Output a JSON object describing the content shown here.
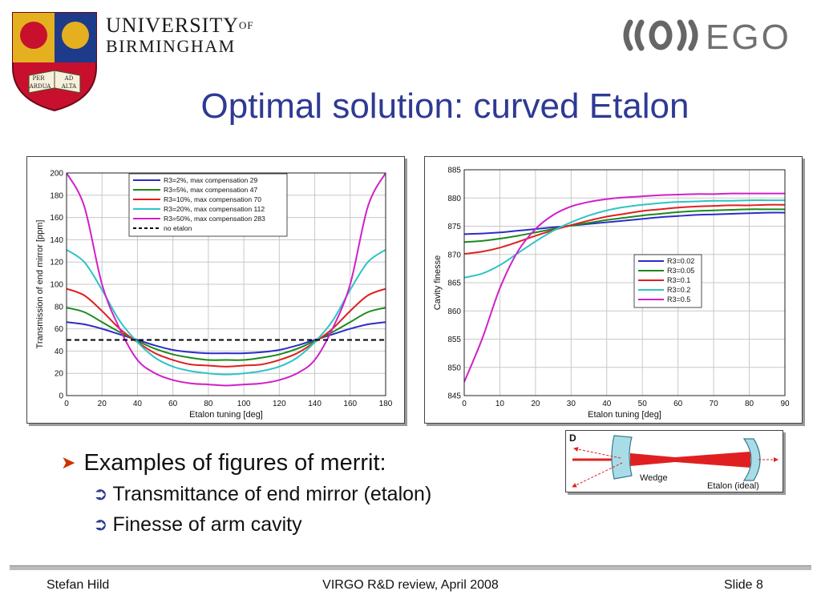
{
  "header": {
    "university_line1": "UNIVERSITY",
    "university_of": "OF",
    "university_line2": "BIRMINGHAM",
    "crest_motto_1": "PER",
    "crest_motto_2": "AD",
    "crest_motto_3": "ARDUA",
    "crest_motto_4": "ALTA",
    "ego_logo": "EGO"
  },
  "title": "Optimal solution: curved Etalon",
  "bullets": {
    "main": "Examples of figures of merrit:",
    "sub": [
      "Transmittance of end mirror (etalon)",
      "Finesse of arm cavity"
    ]
  },
  "diagram": {
    "corner_label": "D",
    "wedge_label": "Wedge",
    "etalon_label": "Etalon (ideal)"
  },
  "footer": {
    "author": "Stefan Hild",
    "event": "VIRGO R&D review, April 2008",
    "slide": "Slide 8"
  },
  "colors": {
    "title": "#2e3a93",
    "s1": "#2c2cc8",
    "s2": "#1a8a1a",
    "s3": "#e02020",
    "s4": "#2ec4c4",
    "s5": "#d020c8",
    "ref": "#000000"
  },
  "chart_data": [
    {
      "type": "line",
      "title": "",
      "xlabel": "Etalon tuning [deg]",
      "ylabel": "Transmission of end mirror [ppm]",
      "xlim": [
        0,
        180
      ],
      "ylim": [
        0,
        200
      ],
      "xticks": [
        0,
        20,
        40,
        60,
        80,
        100,
        120,
        140,
        160,
        180
      ],
      "yticks": [
        0,
        20,
        40,
        60,
        80,
        100,
        120,
        140,
        160,
        180,
        200
      ],
      "grid": true,
      "legend_position": "top-center",
      "x": [
        0,
        10,
        20,
        30,
        40,
        50,
        60,
        70,
        80,
        90,
        100,
        110,
        120,
        130,
        140,
        150,
        160,
        170,
        180
      ],
      "series": [
        {
          "name": "R3=2%, max compensation 29",
          "color": "#2c2cc8",
          "values": [
            66,
            64,
            60,
            55,
            50,
            45,
            41,
            39,
            38,
            38,
            38,
            39,
            41,
            45,
            50,
            55,
            60,
            64,
            66
          ]
        },
        {
          "name": "R3=5%, max compensation 47",
          "color": "#1a8a1a",
          "values": [
            79,
            75,
            66,
            57,
            49,
            42,
            37,
            34,
            32,
            32,
            32,
            34,
            37,
            42,
            49,
            57,
            66,
            75,
            79
          ]
        },
        {
          "name": "R3=10%, max compensation 70",
          "color": "#e02020",
          "values": [
            96,
            90,
            76,
            60,
            48,
            38,
            32,
            28,
            27,
            26,
            27,
            28,
            32,
            38,
            48,
            60,
            76,
            90,
            96
          ]
        },
        {
          "name": "R3=20%, max compensation 112",
          "color": "#2ec4c4",
          "values": [
            131,
            120,
            95,
            67,
            48,
            34,
            26,
            22,
            20,
            19,
            20,
            22,
            26,
            34,
            48,
            67,
            95,
            120,
            131
          ]
        },
        {
          "name": "R3=50%, max compensation 283",
          "color": "#d020c8",
          "values": [
            200,
            170,
            100,
            60,
            32,
            20,
            14,
            11,
            10,
            9,
            10,
            11,
            14,
            20,
            32,
            60,
            100,
            170,
            200
          ]
        },
        {
          "name": "no etalon",
          "color": "#000000",
          "dashed": true,
          "values": [
            50,
            50,
            50,
            50,
            50,
            50,
            50,
            50,
            50,
            50,
            50,
            50,
            50,
            50,
            50,
            50,
            50,
            50,
            50
          ]
        }
      ]
    },
    {
      "type": "line",
      "title": "",
      "xlabel": "Etalon tuning [deg]",
      "ylabel": "Cavity finesse",
      "xlim": [
        0,
        90
      ],
      "ylim": [
        845,
        885
      ],
      "xticks": [
        0,
        10,
        20,
        30,
        40,
        50,
        60,
        70,
        80,
        90
      ],
      "yticks": [
        845,
        850,
        855,
        860,
        865,
        870,
        875,
        880,
        885
      ],
      "grid": true,
      "legend_position": "center-right",
      "x": [
        0,
        5,
        10,
        15,
        20,
        25,
        30,
        35,
        40,
        45,
        50,
        55,
        60,
        65,
        70,
        75,
        80,
        85,
        90
      ],
      "series": [
        {
          "name": "R3=0.02",
          "color": "#2c2cc8",
          "values": [
            873.6,
            873.7,
            873.9,
            874.2,
            874.5,
            874.8,
            875.1,
            875.4,
            875.7,
            876.0,
            876.3,
            876.6,
            876.8,
            877.0,
            877.1,
            877.2,
            877.3,
            877.4,
            877.4
          ]
        },
        {
          "name": "R3=0.05",
          "color": "#1a8a1a",
          "values": [
            872.2,
            872.4,
            872.8,
            873.3,
            873.9,
            874.5,
            875.1,
            875.6,
            876.1,
            876.5,
            876.9,
            877.2,
            877.5,
            877.7,
            877.8,
            877.9,
            878.0,
            878.0,
            878.0
          ]
        },
        {
          "name": "R3=0.1",
          "color": "#e02020",
          "values": [
            870.1,
            870.5,
            871.2,
            872.2,
            873.3,
            874.3,
            875.2,
            876.0,
            876.7,
            877.2,
            877.7,
            878.0,
            878.3,
            878.5,
            878.6,
            878.7,
            878.7,
            878.8,
            878.8
          ]
        },
        {
          "name": "R3=0.2",
          "color": "#2ec4c4",
          "values": [
            865.9,
            866.6,
            868.1,
            870.2,
            872.3,
            874.2,
            875.7,
            876.9,
            877.8,
            878.4,
            878.8,
            879.1,
            879.3,
            879.4,
            879.5,
            879.5,
            879.6,
            879.6,
            879.6
          ]
        },
        {
          "name": "R3=0.5",
          "color": "#d020c8",
          "values": [
            847.4,
            855.0,
            864.0,
            870.5,
            874.5,
            877.0,
            878.5,
            879.3,
            879.8,
            880.1,
            880.3,
            880.5,
            880.6,
            880.7,
            880.7,
            880.8,
            880.8,
            880.8,
            880.8
          ]
        }
      ]
    }
  ]
}
